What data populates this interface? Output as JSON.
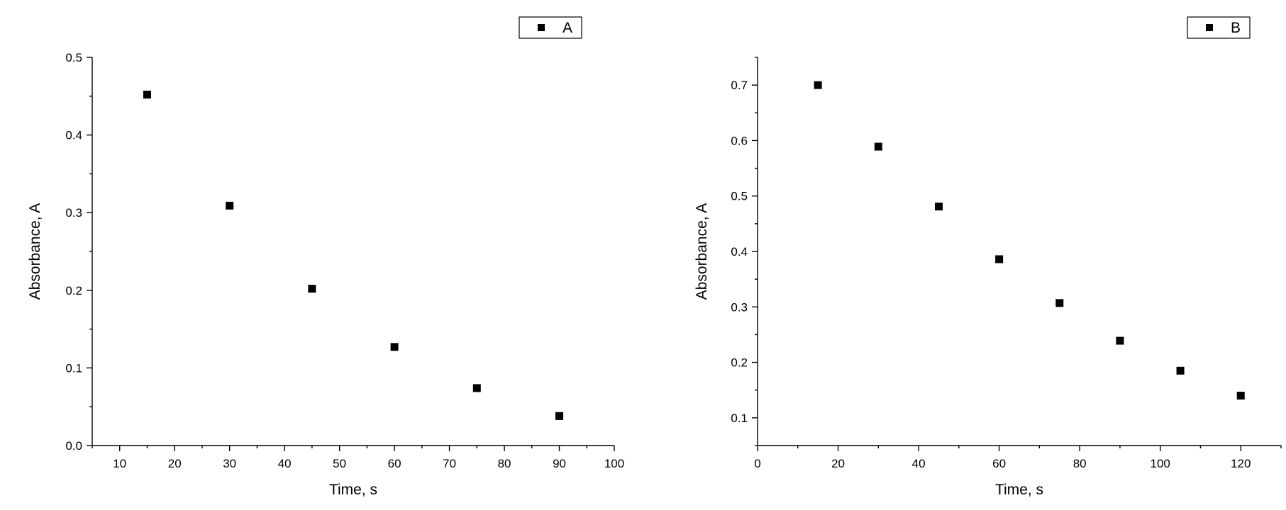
{
  "chart_data": [
    {
      "type": "scatter",
      "xlabel": "Time, s",
      "ylabel": "Absorbance, A",
      "xlim": [
        5,
        100
      ],
      "ylim": [
        0.0,
        0.5
      ],
      "x_major_ticks": [
        10,
        20,
        30,
        40,
        50,
        60,
        70,
        80,
        90,
        100
      ],
      "x_minor_ticks": [
        5,
        15,
        25,
        35,
        45,
        55,
        65,
        75,
        85,
        95
      ],
      "x_tick_labels": [
        "10",
        "20",
        "30",
        "40",
        "50",
        "60",
        "70",
        "80",
        "90",
        "100"
      ],
      "y_major_ticks": [
        0.0,
        0.1,
        0.2,
        0.3,
        0.4,
        0.5
      ],
      "y_minor_ticks": [
        0.05,
        0.15,
        0.25,
        0.35,
        0.45
      ],
      "y_tick_labels": [
        "0.0",
        "0.1",
        "0.2",
        "0.3",
        "0.4",
        "0.5"
      ],
      "legend": {
        "position": "top-right",
        "entries": [
          "A"
        ]
      },
      "series": [
        {
          "name": "A",
          "marker": "square",
          "color": "#000000",
          "x": [
            15,
            30,
            45,
            60,
            75,
            90
          ],
          "y": [
            0.452,
            0.309,
            0.202,
            0.127,
            0.074,
            0.038
          ]
        }
      ]
    },
    {
      "type": "scatter",
      "xlabel": "Time, s",
      "ylabel": "Absorbance, A",
      "xlim": [
        0,
        130
      ],
      "ylim": [
        0.05,
        0.75
      ],
      "x_major_ticks": [
        0,
        20,
        40,
        60,
        80,
        100,
        120
      ],
      "x_minor_ticks": [
        10,
        30,
        50,
        70,
        90,
        110,
        130
      ],
      "x_tick_labels": [
        "0",
        "20",
        "40",
        "60",
        "80",
        "100",
        "120"
      ],
      "y_major_ticks": [
        0.1,
        0.2,
        0.3,
        0.4,
        0.5,
        0.6,
        0.7
      ],
      "y_minor_ticks": [
        0.05,
        0.15,
        0.25,
        0.35,
        0.45,
        0.55,
        0.65,
        0.75
      ],
      "y_tick_labels": [
        "0.1",
        "0.2",
        "0.3",
        "0.4",
        "0.5",
        "0.6",
        "0.7"
      ],
      "legend": {
        "position": "top-right",
        "entries": [
          "B"
        ]
      },
      "series": [
        {
          "name": "B",
          "marker": "square",
          "color": "#000000",
          "x": [
            15,
            30,
            45,
            60,
            75,
            90,
            105,
            120
          ],
          "y": [
            0.7,
            0.589,
            0.481,
            0.386,
            0.307,
            0.239,
            0.185,
            0.14
          ]
        }
      ]
    }
  ]
}
